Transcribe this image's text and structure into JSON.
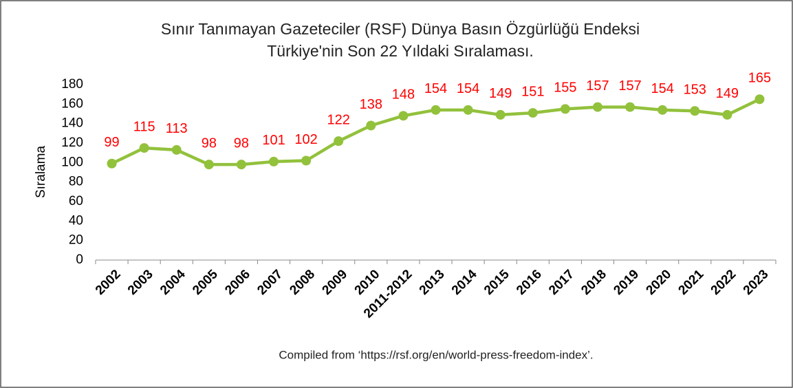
{
  "chart_data": {
    "type": "line",
    "title": "Sınır Tanımayan Gazeteciler (RSF) Dünya Basın Özgürlüğü Endeksi",
    "subtitle": "Türkiye'nin Son 22 Yıldaki Sıralaması.",
    "y_label": "Sıralama",
    "note": "Compiled from ‘https://rsf.org/en/world-press-freedom-index’.",
    "categories": [
      "2002",
      "2003",
      "2004",
      "2005",
      "2006",
      "2007",
      "2008",
      "2009",
      "2010",
      "2011-2012",
      "2013",
      "2014",
      "2015",
      "2016",
      "2017",
      "2018",
      "2019",
      "2020",
      "2021",
      "2022",
      "2023"
    ],
    "series": [
      {
        "name": "Sıralama",
        "color": "#92c13c",
        "values": [
          99,
          115,
          113,
          98,
          98,
          101,
          102,
          122,
          138,
          148,
          154,
          154,
          149,
          151,
          155,
          157,
          157,
          154,
          153,
          149,
          165
        ]
      }
    ],
    "ylim": [
      0,
      180
    ],
    "yticks": [
      0,
      20,
      40,
      60,
      80,
      100,
      120,
      140,
      160,
      180
    ],
    "label_color": "#ff0000",
    "grid": false
  }
}
